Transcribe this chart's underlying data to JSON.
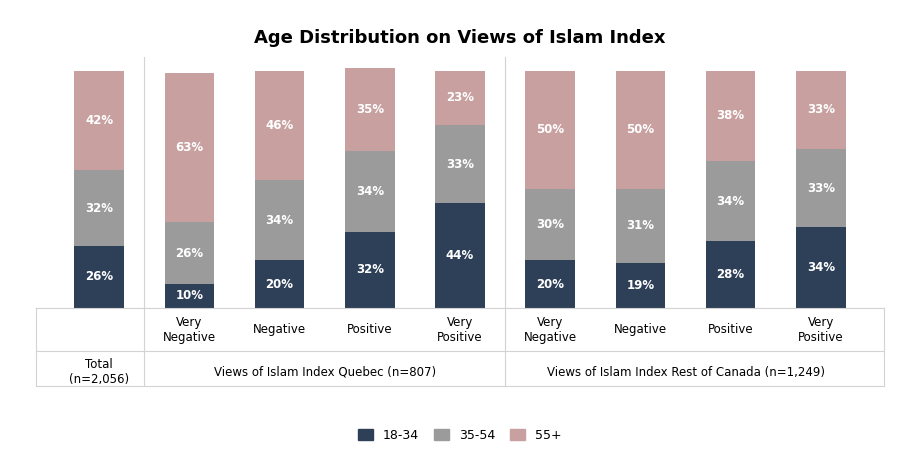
{
  "title": "Age Distribution on Views of Islam Index",
  "cat_labels_row1": [
    "",
    "Very\nNegative",
    "Negative",
    "Positive",
    "Very\nPositive",
    "Very\nNegative",
    "Negative",
    "Positive",
    "Very\nPositive"
  ],
  "cat_labels_row2": [
    "Total\n(n=2,056)",
    "Views of Islam Index Quebec (n=807)",
    "",
    "",
    "",
    "Views of Islam Index Rest of Canada (n=1,249)",
    "",
    "",
    ""
  ],
  "age_18_34": [
    26,
    10,
    20,
    32,
    44,
    20,
    19,
    28,
    34
  ],
  "age_35_54": [
    32,
    26,
    34,
    34,
    33,
    30,
    31,
    34,
    33
  ],
  "age_55plus": [
    42,
    63,
    46,
    35,
    23,
    50,
    50,
    38,
    33
  ],
  "color_18_34": "#2E4057",
  "color_35_54": "#9B9B9B",
  "color_55plus": "#C9A0A0",
  "bar_width": 0.55,
  "legend_labels": [
    "18-34",
    "35-54",
    "55+"
  ],
  "figsize": [
    9.02,
    4.71
  ],
  "dpi": 100
}
